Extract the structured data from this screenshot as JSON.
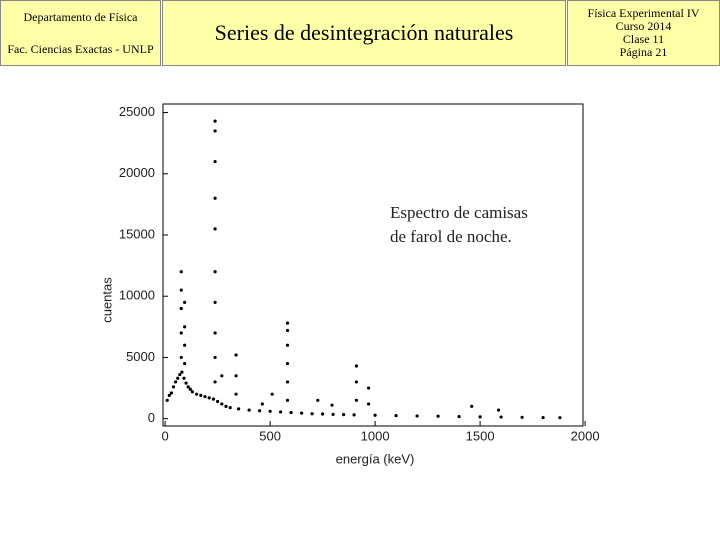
{
  "header": {
    "left": [
      "Departamento de Física",
      "Fac. Ciencias Exactas - UNLP"
    ],
    "title": "Series de desintegración naturales",
    "right": [
      "Física Experimental IV",
      "Curso 2014",
      "Clase 11",
      "Página 21"
    ]
  },
  "chart_data": {
    "type": "scatter",
    "xlabel": "energía (keV)",
    "ylabel": "cuentas",
    "color": "#000000",
    "annotations": [
      "Espectro de camisas",
      "de farol de noche."
    ],
    "x": [
      10,
      20,
      30,
      40,
      50,
      60,
      70,
      80,
      90,
      100,
      110,
      120,
      130,
      150,
      170,
      190,
      210,
      230,
      250,
      270,
      290,
      310,
      350,
      400,
      450,
      500,
      550,
      600,
      650,
      700,
      750,
      800,
      850,
      900,
      1000,
      1100,
      1200,
      1300,
      1400,
      1500,
      1600,
      1700,
      1800,
      1880,
      77,
      77,
      77,
      77,
      77,
      93,
      93,
      93,
      93,
      238,
      238,
      238,
      238,
      238,
      238,
      238,
      238,
      238,
      238,
      338,
      338,
      338,
      583,
      583,
      583,
      583,
      583,
      583,
      911,
      911,
      911,
      969,
      969,
      727,
      795,
      1460,
      1588,
      510,
      463,
      270
    ],
    "values": [
      1500,
      1900,
      2100,
      2600,
      3000,
      3300,
      3600,
      3800,
      3300,
      2900,
      2600,
      2400,
      2200,
      2000,
      1900,
      1800,
      1700,
      1600,
      1400,
      1200,
      1000,
      900,
      800,
      700,
      650,
      600,
      550,
      500,
      450,
      400,
      380,
      350,
      330,
      310,
      280,
      250,
      220,
      200,
      170,
      150,
      130,
      110,
      90,
      80,
      5000,
      7000,
      9000,
      10500,
      12000,
      4500,
      6000,
      7500,
      9500,
      3000,
      5000,
      7000,
      9500,
      12000,
      15500,
      18000,
      21000,
      23500,
      24300,
      2000,
      3500,
      5200,
      1500,
      3000,
      4500,
      6000,
      7200,
      7800,
      1500,
      3000,
      4300,
      1200,
      2500,
      1500,
      1100,
      1000,
      700,
      2000,
      1200,
      3500
    ],
    "xlim": [
      -10,
      1990
    ],
    "ylim": [
      -600,
      25700
    ],
    "xticks": [
      0,
      500,
      1000,
      1500,
      2000
    ],
    "yticks": [
      0,
      5000,
      10000,
      15000,
      20000,
      25000
    ]
  }
}
